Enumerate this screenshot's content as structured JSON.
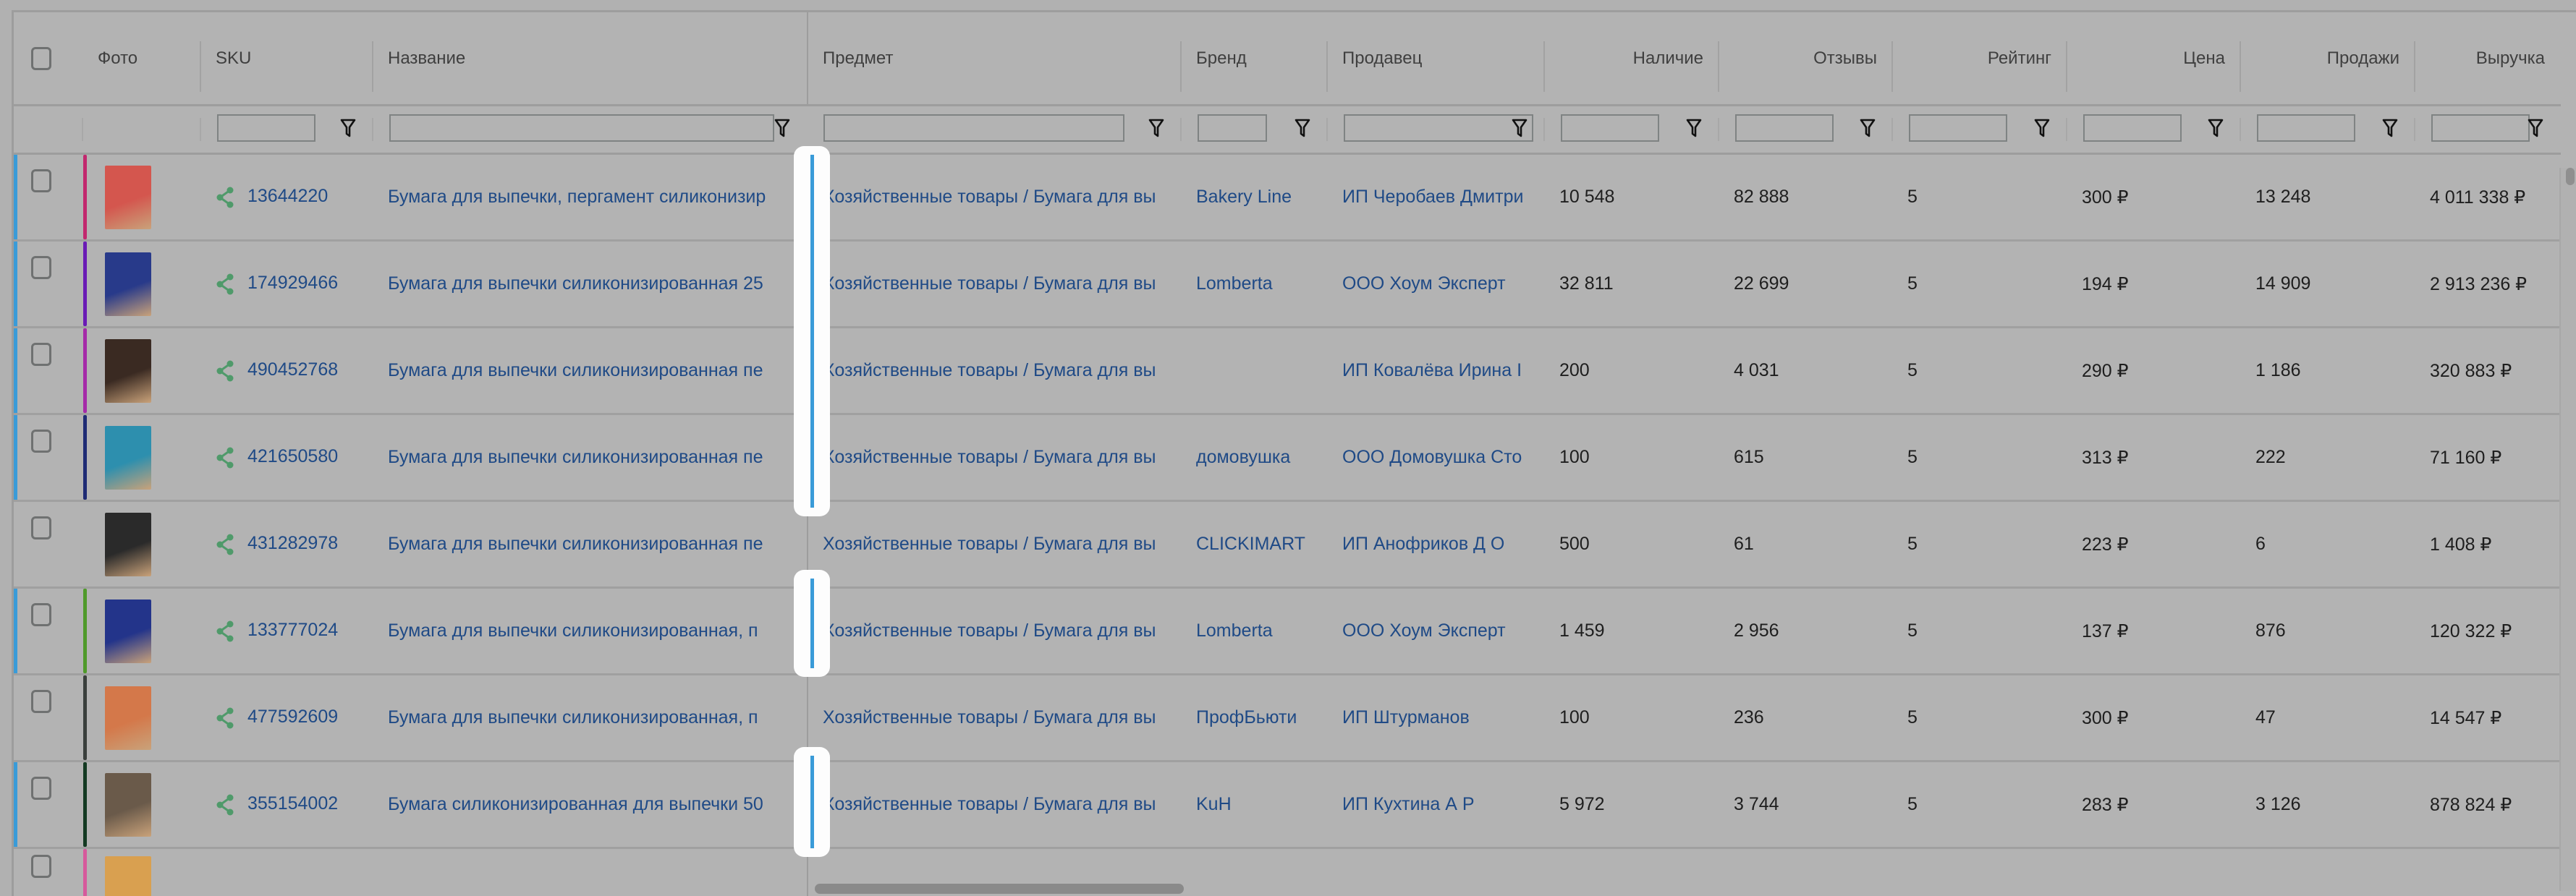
{
  "columns": [
    {
      "key": "select",
      "label": ""
    },
    {
      "key": "photo",
      "label": "Фото"
    },
    {
      "key": "sku",
      "label": "SKU"
    },
    {
      "key": "name",
      "label": "Название"
    },
    {
      "key": "subject",
      "label": "Предмет"
    },
    {
      "key": "brand",
      "label": "Бренд"
    },
    {
      "key": "seller",
      "label": "Продавец"
    },
    {
      "key": "stock",
      "label": "Наличие",
      "numeric": true
    },
    {
      "key": "reviews",
      "label": "Отзывы",
      "numeric": true
    },
    {
      "key": "rating",
      "label": "Рейтинг",
      "numeric": true
    },
    {
      "key": "price",
      "label": "Цена",
      "numeric": true
    },
    {
      "key": "sales",
      "label": "Продажи",
      "numeric": true
    },
    {
      "key": "revenue",
      "label": "Выручка",
      "numeric": true
    }
  ],
  "filters": {
    "values": [
      "",
      "",
      "",
      "",
      "",
      "",
      "",
      "",
      "",
      "",
      ""
    ]
  },
  "colors": {
    "link": "#1f4a86",
    "selection_bar": "#3a9bd8",
    "share_icon": "#4f9a6a"
  },
  "rows": [
    {
      "sku": "13644220",
      "name": "Бумага для выпечки, пергамент силиконизир",
      "subject": "Хозяйственные товары / Бумага для вы",
      "brand": "Bakery Line",
      "seller": "ИП Черобаев Дмитри",
      "stock": "10 548",
      "reviews": "82 888",
      "rating": "5",
      "price": "300 ₽",
      "sales": "13 248",
      "revenue": "4 011 338 ₽",
      "tag_color": "#c2286e",
      "photo_color": "#d4564e",
      "marked": true
    },
    {
      "sku": "174929466",
      "name": "Бумага для выпечки силиконизированная 25",
      "subject": "Хозяйственные товары / Бумага для вы",
      "brand": "Lomberta",
      "seller": "ООО Хоум Эксперт",
      "stock": "32 811",
      "reviews": "22 699",
      "rating": "5",
      "price": "194 ₽",
      "sales": "14 909",
      "revenue": "2 913 236 ₽",
      "tag_color": "#6a1bb5",
      "photo_color": "#283a8a",
      "marked": true
    },
    {
      "sku": "490452768",
      "name": "Бумага для выпечки силиконизированная пе",
      "subject": "Хозяйственные товары / Бумага для вы",
      "brand": "",
      "seller": "ИП Ковалёва Ирина I",
      "stock": "200",
      "reviews": "4 031",
      "rating": "5",
      "price": "290 ₽",
      "sales": "1 186",
      "revenue": "320 883 ₽",
      "tag_color": "#a52aa8",
      "photo_color": "#3a2a22",
      "marked": true
    },
    {
      "sku": "421650580",
      "name": "Бумага для выпечки силиконизированная пе",
      "subject": "Хозяйственные товары / Бумага для вы",
      "brand": "домовушка",
      "seller": "ООО Домовушка Сто",
      "stock": "100",
      "reviews": "615",
      "rating": "5",
      "price": "313 ₽",
      "sales": "222",
      "revenue": "71 160 ₽",
      "tag_color": "#1e2b74",
      "photo_color": "#2d8fae",
      "marked": true
    },
    {
      "sku": "431282978",
      "name": "Бумага для выпечки силиконизированная пе",
      "subject": "Хозяйственные товары / Бумага для вы",
      "brand": "CLICKIMART",
      "seller": "ИП Анофриков Д О",
      "stock": "500",
      "reviews": "61",
      "rating": "5",
      "price": "223 ₽",
      "sales": "6",
      "revenue": "1 408 ₽",
      "tag_color": "",
      "photo_color": "#2a2a2a",
      "marked": false
    },
    {
      "sku": "133777024",
      "name": "Бумага для выпечки силиконизированная, п",
      "subject": "Хозяйственные товары / Бумага для вы",
      "brand": "Lomberta",
      "seller": "ООО Хоум Эксперт",
      "stock": "1 459",
      "reviews": "2 956",
      "rating": "5",
      "price": "137 ₽",
      "sales": "876",
      "revenue": "120 322 ₽",
      "tag_color": "#4f9a2a",
      "photo_color": "#23348a",
      "marked": true
    },
    {
      "sku": "477592609",
      "name": "Бумага для выпечки силиконизированная, п",
      "subject": "Хозяйственные товары / Бумага для вы",
      "brand": "ПрофБьюти",
      "seller": "ИП Штурманов",
      "stock": "100",
      "reviews": "236",
      "rating": "5",
      "price": "300 ₽",
      "sales": "47",
      "revenue": "14 547 ₽",
      "tag_color": "#3a3f3c",
      "photo_color": "#d4784a",
      "marked": false
    },
    {
      "sku": "355154002",
      "name": "Бумага силиконизированная для выпечки 50",
      "subject": "Хозяйственные товары / Бумага для вы",
      "brand": "KuH",
      "seller": "ИП Кухтина А Р",
      "stock": "5 972",
      "reviews": "3 744",
      "rating": "5",
      "price": "283 ₽",
      "sales": "3 126",
      "revenue": "878 824 ₽",
      "tag_color": "#143a22",
      "photo_color": "#6a5a4a",
      "marked": true
    }
  ],
  "partial_row": {
    "tag_color": "#d65a9c",
    "photo_color": "#d9a050"
  }
}
